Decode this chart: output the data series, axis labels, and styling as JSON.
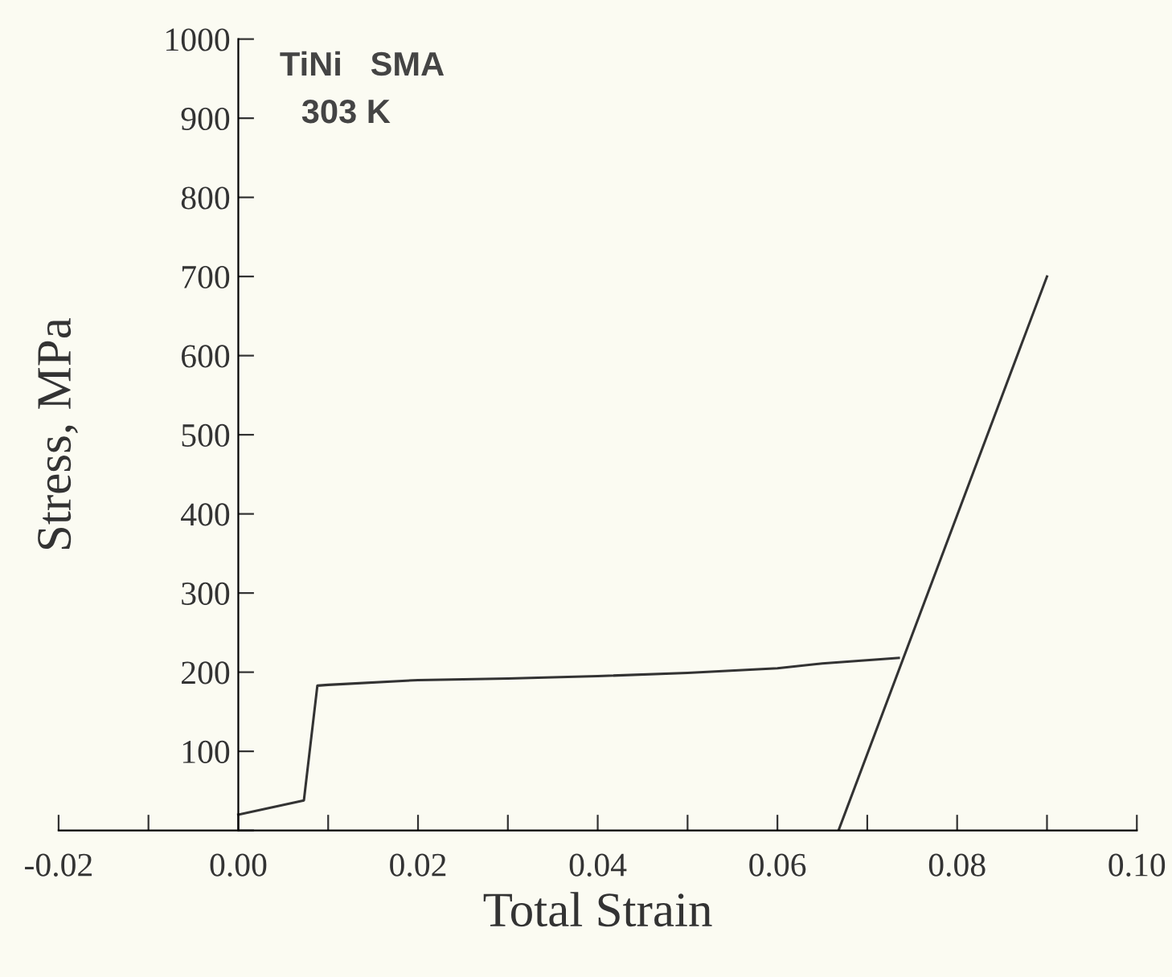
{
  "chart_data": {
    "type": "line",
    "xlabel": "Total Strain",
    "ylabel": "Stress, MPa",
    "annotations": [
      "TiNi   SMA",
      "303 K"
    ],
    "series": [
      {
        "color": "#333333",
        "x": [
          0.0,
          0.0073,
          0.0088,
          0.01,
          0.02,
          0.03,
          0.04,
          0.05,
          0.06,
          0.065,
          0.0735
        ],
        "values": [
          20,
          38,
          183,
          184,
          190,
          192,
          195,
          199,
          205,
          211,
          218
        ]
      },
      {
        "color": "#333333",
        "x": [
          0.0668,
          0.09
        ],
        "values": [
          0,
          700
        ]
      }
    ],
    "xlim": [
      -0.02,
      0.1
    ],
    "xticks": [
      -0.02,
      {
        "value": -0.01,
        "label": null
      },
      {
        "value": 0.0,
        "label": "0.00"
      },
      {
        "value": 0.01,
        "label": null
      },
      0.02,
      {
        "value": 0.03,
        "label": null
      },
      0.04,
      {
        "value": 0.05,
        "label": null
      },
      0.06,
      {
        "value": 0.07,
        "label": null
      },
      0.08,
      {
        "value": 0.09,
        "label": null
      },
      {
        "value": 0.1,
        "label": "0.10"
      }
    ],
    "ylim": [
      0,
      1000
    ],
    "yticks": [
      {
        "value": 0,
        "label": null
      },
      100,
      200,
      300,
      400,
      500,
      600,
      700,
      800,
      900,
      1000
    ],
    "grid": false,
    "legend": false,
    "marker": "none",
    "line_style": "solid"
  }
}
